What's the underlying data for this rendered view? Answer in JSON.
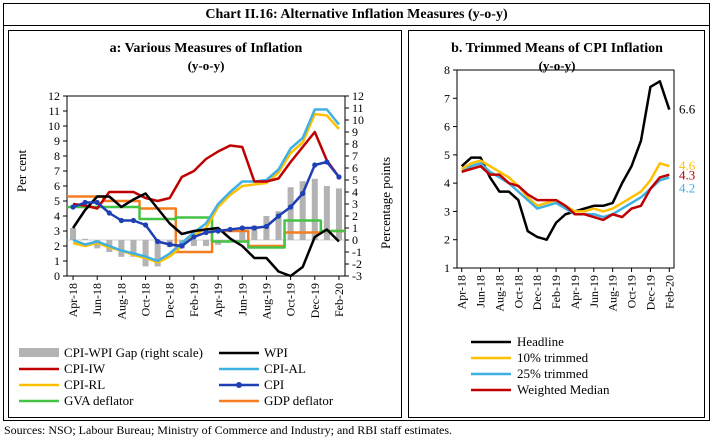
{
  "title": "Chart II.16: Alternative Inflation Measures (y-o-y)",
  "sources": "Sources: NSO; Labour Bureau; Ministry of Commerce and Industry; and RBI staff estimates.",
  "colors": {
    "gap": "#b3b3b3",
    "wpi": "#000000",
    "cpi_iw": "#c00000",
    "cpi_al": "#3fb0e3",
    "cpi_rl": "#ffc000",
    "cpi": "#1f3fb4",
    "gva": "#44c444",
    "gdp": "#f57d20"
  },
  "chart_data": [
    {
      "type": "line",
      "title": "a:  Various Measures of Inflation",
      "subtitle": "(y-o-y)",
      "ylabel": "Per cent",
      "ylabel_right": "Percentage points",
      "ylim": [
        0,
        12
      ],
      "ylim_right": [
        -3,
        12
      ],
      "yticks": [
        "0",
        "1",
        "2",
        "3",
        "4",
        "5",
        "6",
        "7",
        "8",
        "9",
        "10",
        "11",
        "12"
      ],
      "yticks_right": [
        "-3",
        "-2",
        "-1",
        "0",
        "1",
        "2",
        "3",
        "4",
        "5",
        "6",
        "7",
        "8",
        "9",
        "10",
        "11",
        "12"
      ],
      "x": [
        "Apr-18",
        "May-18",
        "Jun-18",
        "Jul-18",
        "Aug-18",
        "Sep-18",
        "Oct-18",
        "Nov-18",
        "Dec-18",
        "Jan-19",
        "Feb-19",
        "Mar-19",
        "Apr-19",
        "May-19",
        "Jun-19",
        "Jul-19",
        "Aug-19",
        "Sep-19",
        "Oct-19",
        "Nov-19",
        "Dec-19",
        "Jan-20",
        "Feb-20"
      ],
      "xtick_labels": [
        "Apr-18",
        "Jun-18",
        "Aug-18",
        "Oct-18",
        "Dec-18",
        "Feb-19",
        "Apr-19",
        "Jun-19",
        "Aug-19",
        "Oct-19",
        "Dec-19",
        "Feb-20"
      ],
      "series": [
        {
          "key": "gap",
          "name": "CPI-WPI Gap (right scale)",
          "kind": "bar",
          "axis": "right",
          "values": [
            1.0,
            0.1,
            -0.7,
            -1.0,
            -1.4,
            -1.4,
            -2.2,
            -2.2,
            -0.6,
            -0.7,
            -0.5,
            -0.5,
            -0.4,
            -0.2,
            1.1,
            1.2,
            2.0,
            2.4,
            4.4,
            4.9,
            5.1,
            4.5,
            4.3
          ]
        },
        {
          "key": "wpi",
          "name": "WPI",
          "kind": "line",
          "axis": "left",
          "values": [
            3.2,
            4.4,
            5.3,
            5.3,
            4.6,
            5.1,
            5.5,
            4.5,
            3.5,
            2.8,
            3.0,
            3.1,
            3.2,
            2.5,
            2.0,
            1.2,
            1.2,
            0.3,
            0.0,
            0.6,
            2.6,
            3.1,
            2.3
          ]
        },
        {
          "key": "cpi_iw",
          "name": "CPI-IW",
          "kind": "line",
          "axis": "left",
          "values": [
            4.8,
            4.7,
            4.5,
            5.6,
            5.6,
            5.6,
            5.2,
            5.0,
            5.2,
            6.6,
            7.0,
            7.8,
            8.3,
            8.7,
            8.6,
            6.3,
            6.3,
            6.5,
            7.6,
            8.6,
            9.6,
            7.7,
            6.6
          ]
        },
        {
          "key": "cpi_al",
          "name": "CPI-AL",
          "kind": "line",
          "axis": "left",
          "values": [
            2.4,
            2.1,
            2.3,
            2.0,
            1.7,
            1.5,
            1.3,
            1.0,
            1.5,
            2.2,
            2.9,
            3.5,
            4.8,
            5.6,
            6.3,
            6.3,
            6.4,
            7.1,
            8.5,
            9.2,
            11.1,
            11.1,
            10.1
          ]
        },
        {
          "key": "cpi_rl",
          "name": "CPI-RL",
          "kind": "line",
          "axis": "left",
          "values": [
            2.2,
            2.0,
            2.2,
            1.9,
            1.7,
            1.4,
            1.2,
            0.9,
            1.3,
            2.0,
            2.7,
            3.2,
            4.6,
            5.4,
            6.0,
            6.1,
            6.2,
            6.9,
            8.2,
            8.9,
            10.8,
            10.7,
            9.8
          ]
        },
        {
          "key": "cpi",
          "name": "CPI",
          "kind": "marker-line",
          "axis": "left",
          "values": [
            4.6,
            4.9,
            4.9,
            4.2,
            3.7,
            3.7,
            3.4,
            2.3,
            2.1,
            2.0,
            2.6,
            2.9,
            3.0,
            3.1,
            3.2,
            3.2,
            3.3,
            4.0,
            4.6,
            5.5,
            7.4,
            7.6,
            6.6
          ]
        },
        {
          "key": "gva",
          "name": "GVA deflator",
          "kind": "step",
          "axis": "left",
          "values": [
            4.6,
            4.6,
            4.6,
            4.6,
            4.6,
            4.6,
            3.8,
            3.8,
            3.8,
            3.9,
            3.9,
            3.9,
            2.3,
            2.3,
            2.3,
            1.9,
            1.9,
            1.9,
            3.7,
            3.7,
            3.7,
            3.0,
            3.0
          ]
        },
        {
          "key": "gdp",
          "name": "GDP deflator",
          "kind": "step",
          "axis": "left",
          "values": [
            5.3,
            5.3,
            5.3,
            5.0,
            5.0,
            5.0,
            4.5,
            4.5,
            4.5,
            1.6,
            1.6,
            1.6,
            3.0,
            3.0,
            3.0,
            2.0,
            2.0,
            2.0,
            2.9,
            2.9,
            2.9,
            3.0,
            3.0
          ]
        }
      ]
    },
    {
      "type": "line",
      "title": "b. Trimmed Means of CPI Inflation",
      "subtitle": "(y-o-y)",
      "ylim": [
        1,
        8
      ],
      "yticks": [
        "1",
        "2",
        "3",
        "4",
        "5",
        "6",
        "7",
        "8"
      ],
      "x": [
        "Apr-18",
        "May-18",
        "Jun-18",
        "Jul-18",
        "Aug-18",
        "Sep-18",
        "Oct-18",
        "Nov-18",
        "Dec-18",
        "Jan-19",
        "Feb-19",
        "Mar-19",
        "Apr-19",
        "May-19",
        "Jun-19",
        "Jul-19",
        "Aug-19",
        "Sep-19",
        "Oct-19",
        "Nov-19",
        "Dec-19",
        "Jan-20",
        "Feb-20"
      ],
      "xtick_labels": [
        "Apr-18",
        "Jun-18",
        "Aug-18",
        "Oct-18",
        "Dec-18",
        "Feb-19",
        "Apr-19",
        "Jun-19",
        "Aug-19",
        "Oct-19",
        "Dec-19",
        "Feb-20"
      ],
      "series": [
        {
          "key": "wpi",
          "name": "Headline",
          "end_label": "6.6",
          "values": [
            4.6,
            4.9,
            4.9,
            4.2,
            3.7,
            3.7,
            3.4,
            2.3,
            2.1,
            2.0,
            2.6,
            2.9,
            3.0,
            3.1,
            3.2,
            3.2,
            3.3,
            4.0,
            4.6,
            5.5,
            7.4,
            7.6,
            6.6
          ]
        },
        {
          "key": "cpi_rl",
          "name": "10% trimmed",
          "end_label": "4.6",
          "values": [
            4.5,
            4.7,
            4.8,
            4.6,
            4.4,
            4.2,
            3.9,
            3.5,
            3.2,
            3.3,
            3.4,
            3.2,
            3.0,
            3.0,
            3.1,
            3.0,
            3.1,
            3.3,
            3.5,
            3.7,
            4.1,
            4.7,
            4.6
          ]
        },
        {
          "key": "cpi_al",
          "name": "25% trimmed",
          "end_label": "4.2",
          "values": [
            4.4,
            4.6,
            4.7,
            4.4,
            4.2,
            4.0,
            3.7,
            3.4,
            3.1,
            3.2,
            3.3,
            3.1,
            2.9,
            2.9,
            2.9,
            2.8,
            2.9,
            3.1,
            3.3,
            3.5,
            3.8,
            4.1,
            4.2
          ]
        },
        {
          "key": "cpi_iw",
          "name": "Weighted Median",
          "end_label": "4.3",
          "values": [
            4.4,
            4.5,
            4.6,
            4.3,
            4.3,
            4.0,
            3.9,
            3.6,
            3.4,
            3.4,
            3.4,
            3.2,
            2.9,
            2.9,
            2.8,
            2.7,
            2.9,
            2.8,
            3.1,
            3.2,
            3.8,
            4.2,
            4.3
          ]
        }
      ]
    }
  ]
}
